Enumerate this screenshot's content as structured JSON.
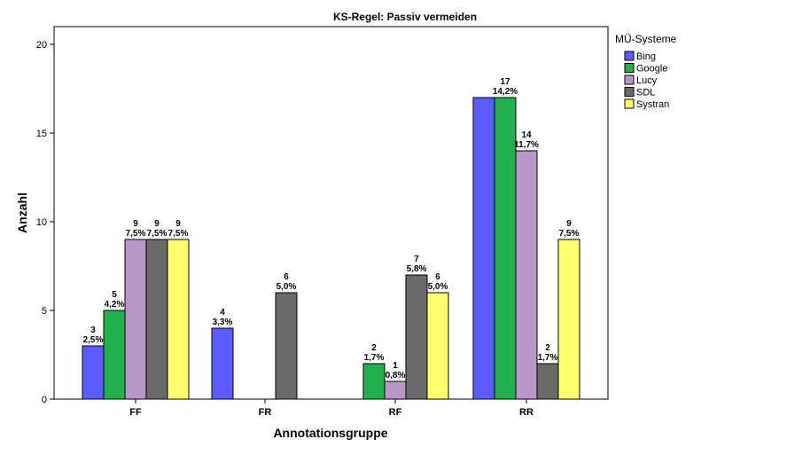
{
  "chart_data": {
    "type": "bar",
    "title": "KS-Regel: Passiv vermeiden",
    "xlabel": "Annotationsgruppe",
    "ylabel": "Anzahl",
    "ylim": [
      0,
      21
    ],
    "yticks": [
      0,
      5,
      10,
      15,
      20
    ],
    "grid": false,
    "legend": {
      "title": "MÜ-Systeme",
      "placement": "right"
    },
    "categories": [
      "FF",
      "FR",
      "RF",
      "RR"
    ],
    "series": [
      {
        "name": "Bing",
        "color": "#5b5bff",
        "values": [
          3,
          4,
          0,
          17
        ],
        "labels": [
          "2,5%",
          "3,3%",
          "",
          ""
        ]
      },
      {
        "name": "Google",
        "color": "#22b14c",
        "values": [
          5,
          0,
          2,
          17
        ],
        "labels": [
          "4,2%",
          "",
          "1,7%",
          "14,2%"
        ]
      },
      {
        "name": "Lucy",
        "color": "#b896c8",
        "values": [
          9,
          0,
          1,
          14
        ],
        "labels": [
          "7,5%",
          "",
          "0,8%",
          "11,7%"
        ]
      },
      {
        "name": "SDL",
        "color": "#6a6a6a",
        "values": [
          9,
          6,
          7,
          2
        ],
        "labels": [
          "7,5%",
          "5,0%",
          "5,8%",
          "1,7%"
        ]
      },
      {
        "name": "Systran",
        "color": "#ffff6e",
        "values": [
          9,
          0,
          6,
          9
        ],
        "labels": [
          "7,5%",
          "",
          "5,0%",
          "7,5%"
        ]
      }
    ],
    "annotations": [
      {
        "category": "FF",
        "series": "Bing",
        "count": "3",
        "percent": "2,5%"
      },
      {
        "category": "FF",
        "series": "Google",
        "count": "5",
        "percent": "4,2%"
      },
      {
        "category": "FF",
        "series": "Lucy",
        "count": "9",
        "percent": "7,5%"
      },
      {
        "category": "FF",
        "series": "SDL",
        "count": "9",
        "percent": "7,5%"
      },
      {
        "category": "FF",
        "series": "Systran",
        "count": "9",
        "percent": "7,5%"
      },
      {
        "category": "FR",
        "series": "Bing",
        "count": "4",
        "percent": "3,3%"
      },
      {
        "category": "FR",
        "series": "SDL",
        "count": "6",
        "percent": "5,0%"
      },
      {
        "category": "RF",
        "series": "Google",
        "count": "2",
        "percent": "1,7%"
      },
      {
        "category": "RF",
        "series": "Lucy",
        "count": "1",
        "percent": "0,8%"
      },
      {
        "category": "RF",
        "series": "SDL",
        "count": "7",
        "percent": "5,8%"
      },
      {
        "category": "RF",
        "series": "Systran",
        "count": "6",
        "percent": "5,0%"
      },
      {
        "category": "RR",
        "series": "Google",
        "count": "17",
        "percent": "14,2%"
      },
      {
        "category": "RR",
        "series": "Lucy",
        "count": "14",
        "percent": "11,7%"
      },
      {
        "category": "RR",
        "series": "SDL",
        "count": "2",
        "percent": "1,7%"
      },
      {
        "category": "RR",
        "series": "Systran",
        "count": "9",
        "percent": "7,5%"
      }
    ]
  }
}
